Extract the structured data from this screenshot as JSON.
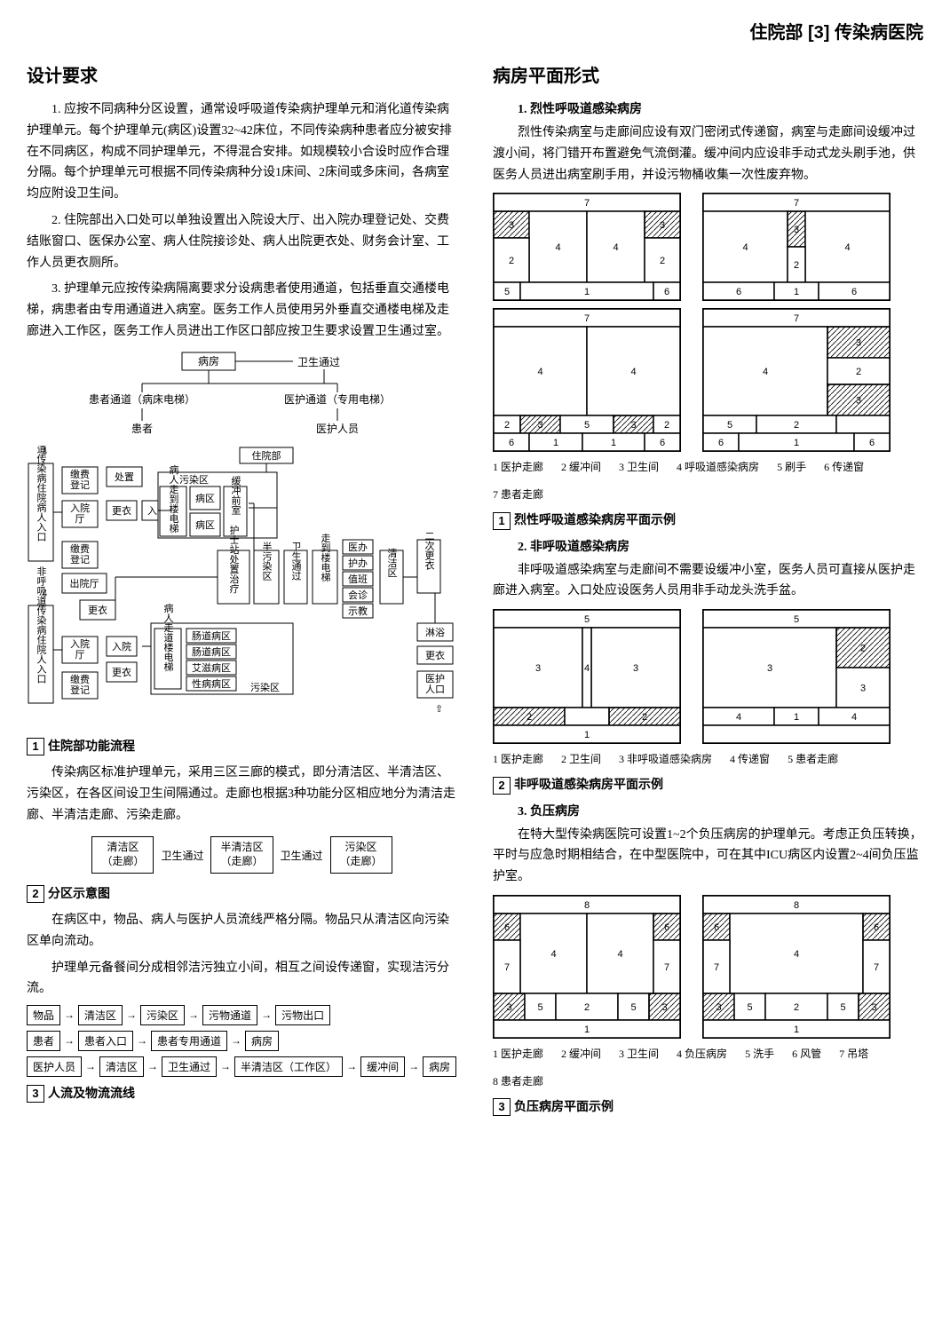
{
  "header": {
    "left": "住院部",
    "num": "[3]",
    "right": "传染病医院"
  },
  "col1": {
    "h": "设计要求",
    "p1": "1. 应按不同病种分区设置，通常设呼吸道传染病护理单元和消化道传染病护理单元。每个护理单元(病区)设置32~42床位，不同传染病种患者应分被安排在不同病区，构成不同护理单元，不得混合安排。如规模较小合设时应作合理分隔。每个护理单元可根据不同传染病种分设1床间、2床间或多床间，各病室均应附设卫生间。",
    "p2": "2. 住院部出入口处可以单独设置出入院设大厅、出入院办理登记处、交费结账窗口、医保办公室、病人住院接诊处、病人出院更衣处、财务会计室、工作人员更衣厕所。",
    "p3": "3. 护理单元应按传染病隔离要求分设病患者使用通道，包括垂直交通楼电梯，病患者由专用通道进入病室。医务工作人员使用另外垂直交通楼电梯及走廊进入工作区，医务工作人员进出工作区口部应按卫生要求设置卫生通过室。",
    "flowchart1": {
      "nodes": {
        "ward": "病房",
        "pass": "卫生通过",
        "patCorr": "患者通道（病床电梯）",
        "medCorr": "医护通道（专用电梯）",
        "patient": "患者",
        "staff": "医护人员"
      }
    },
    "flowchart2": {
      "left_a": "呼吸道传染病住院病人入口",
      "left_b": "非呼吸道传染病住院人入口",
      "row1": [
        "缴费登记",
        "处置"
      ],
      "row2": [
        "入院厅",
        "更衣",
        "入院"
      ],
      "row3": [
        "缴费登记"
      ],
      "row4": [
        "出院厅"
      ],
      "row5": [
        "更衣"
      ],
      "row6": [
        "入院厅",
        "入院",
        "更衣"
      ],
      "row7": [
        "缴费登记"
      ],
      "inpatient": "住院部",
      "midTop": [
        "污染区",
        "病人走到楼电梯",
        "病区",
        "病区",
        "缓冲前室"
      ],
      "midMid": [
        "护士站处置治疗",
        "半污染区",
        "卫生通过",
        "走到楼电梯",
        "医办",
        "护办",
        "值班",
        "会诊",
        "示教",
        "清洁区",
        "二次更衣"
      ],
      "midBot": [
        "病人走道楼电梯",
        "肠道病区",
        "肠道病区",
        "艾滋病区",
        "性病病区",
        "污染区"
      ],
      "right": [
        "淋浴",
        "更衣",
        "医护人口"
      ]
    },
    "cap1": "住院部功能流程",
    "p4": "传染病区标准护理单元，采用三区三廊的模式，即分清洁区、半清洁区、污染区，在各区间设卫生间隔通过。走廊也根据3种功能分区相应地分为清洁走廊、半清洁走廊、污染走廊。",
    "zones": {
      "a": "清洁区\n（走廊）",
      "b": "卫生通过",
      "c": "半清洁区\n（走廊）",
      "d": "卫生通过",
      "e": "污染区\n（走廊）"
    },
    "cap2": "分区示意图",
    "p5": "在病区中，物品、病人与医护人员流线严格分隔。物品只从清洁区向污染区单向流动。",
    "p6": "护理单元备餐间分成相邻洁污独立小间，相互之间设传递窗，实现洁污分流。",
    "flows": [
      [
        "物品",
        "清洁区",
        "污染区",
        "污物通道",
        "污物出口"
      ],
      [
        "患者",
        "患者入口",
        "患者专用通道",
        "病房"
      ],
      [
        "医护人员",
        "清洁区",
        "卫生通过",
        "半清洁区（工作区）",
        "缓冲间",
        "病房"
      ]
    ],
    "cap3": "人流及物流流线"
  },
  "col2": {
    "h": "病房平面形式",
    "s1h": "1. 烈性呼吸道感染病房",
    "s1p": "烈性传染病室与走廊间应设有双门密闭式传递窗，病室与走廊间设缓冲过渡小间，将门错开布置避免气流倒灌。缓冲间内应设非手动式龙头刷手池，供医务人员进出病室刷手用，并设污物桶收集一次性废弃物。",
    "leg1": {
      "1": "医护走廊",
      "2": "缓冲间",
      "3": "卫生间",
      "4": "呼吸道感染病房",
      "5": "刷手",
      "6": "传递窗",
      "7": "患者走廊"
    },
    "cap1": "烈性呼吸道感染病房平面示例",
    "s2h": "2. 非呼吸道感染病房",
    "s2p": "非呼吸道感染病室与走廊间不需要设缓冲小室，医务人员可直接从医护走廊进入病室。入口处应设医务人员用非手动龙头洗手盆。",
    "leg2": {
      "1": "医护走廊",
      "2": "卫生间",
      "3": "非呼吸道感染病房",
      "4": "传递窗",
      "5": "患者走廊"
    },
    "cap2": "非呼吸道感染病房平面示例",
    "s3h": "3. 负压病房",
    "s3p": "在特大型传染病医院可设置1~2个负压病房的护理单元。考虑正负压转换，平时与应急时期相结合，在中型医院中，可在其中ICU病区内设置2~4间负压监护室。",
    "leg3": {
      "1": "医护走廊",
      "2": "缓冲间",
      "3": "卫生间",
      "4": "负压病房",
      "5": "洗手",
      "6": "风管",
      "7": "吊塔",
      "8": "患者走廊"
    },
    "cap3": "负压病房平面示例"
  }
}
